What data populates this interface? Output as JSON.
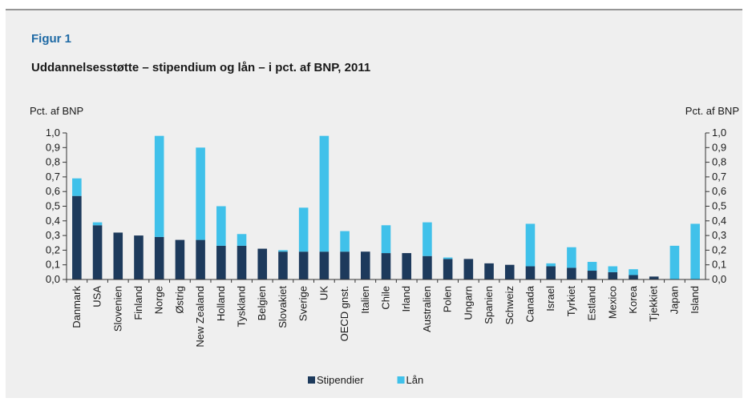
{
  "chart_data": {
    "type": "stacked_bar",
    "figure_label": "Figur 1",
    "title": "Uddannelsesstøtte – stipendium og lån – i pct. af BNP, 2011",
    "y_label": "Pct. af BNP",
    "y2_label": "Pct. af BNP",
    "categories": [
      "Danmark",
      "USA",
      "Slovenien",
      "Finland",
      "Norge",
      "Østrig",
      "New Zealand",
      "Holland",
      "Tyskland",
      "Belgien",
      "Slovakiet",
      "Sverige",
      "UK",
      "OECD gnst.",
      "Italien",
      "Chile",
      "Irland",
      "Australien",
      "Polen",
      "Ungarn",
      "Spanien",
      "Schweiz",
      "Canada",
      "Israel",
      "Tyrkiet",
      "Estland",
      "Mexico",
      "Korea",
      "Tjekkiet",
      "Japan",
      "Island"
    ],
    "series": [
      {
        "name": "Stipendier",
        "color": "#1d3a5c",
        "values": [
          0.57,
          0.37,
          0.32,
          0.3,
          0.29,
          0.27,
          0.27,
          0.23,
          0.23,
          0.21,
          0.19,
          0.19,
          0.19,
          0.19,
          0.19,
          0.18,
          0.18,
          0.16,
          0.14,
          0.14,
          0.11,
          0.1,
          0.09,
          0.09,
          0.08,
          0.06,
          0.05,
          0.03,
          0.02,
          0,
          0
        ]
      },
      {
        "name": "Lån",
        "color": "#40c1ea",
        "values": [
          0.12,
          0.02,
          0,
          0,
          0.69,
          0,
          0.63,
          0.27,
          0.08,
          0,
          0.01,
          0.3,
          0.79,
          0.14,
          0,
          0.19,
          0,
          0.23,
          0.01,
          0,
          0,
          0,
          0.29,
          0.02,
          0.14,
          0.06,
          0.04,
          0.04,
          0,
          0.23,
          0.38
        ]
      }
    ],
    "ylim": [
      0,
      1
    ],
    "yticks": [
      {
        "value": 0,
        "label": "0,0"
      },
      {
        "value": 0.1,
        "label": "0,1"
      },
      {
        "value": 0.2,
        "label": "0,2"
      },
      {
        "value": 0.3,
        "label": "0,3"
      },
      {
        "value": 0.4,
        "label": "0,4"
      },
      {
        "value": 0.5,
        "label": "0,5"
      },
      {
        "value": 0.6,
        "label": "0,6"
      },
      {
        "value": 0.7,
        "label": "0,7"
      },
      {
        "value": 0.8,
        "label": "0,8"
      },
      {
        "value": 0.9,
        "label": "0,9"
      },
      {
        "value": 1,
        "label": "1,0"
      }
    ],
    "y2lim": [
      0,
      1
    ],
    "y2ticks": [
      {
        "value": 0,
        "label": "0,0"
      },
      {
        "value": 0.1,
        "label": "0,1"
      },
      {
        "value": 0.2,
        "label": "0,2"
      },
      {
        "value": 0.3,
        "label": "0,3"
      },
      {
        "value": 0.4,
        "label": "0,4"
      },
      {
        "value": 0.5,
        "label": "0,5"
      },
      {
        "value": 0.6,
        "label": "0,6"
      },
      {
        "value": 0.7,
        "label": "0,7"
      },
      {
        "value": 0.8,
        "label": "0,8"
      },
      {
        "value": 0.9,
        "label": "0,9"
      },
      {
        "value": 1,
        "label": "1,0"
      }
    ],
    "legend": "bottom"
  }
}
